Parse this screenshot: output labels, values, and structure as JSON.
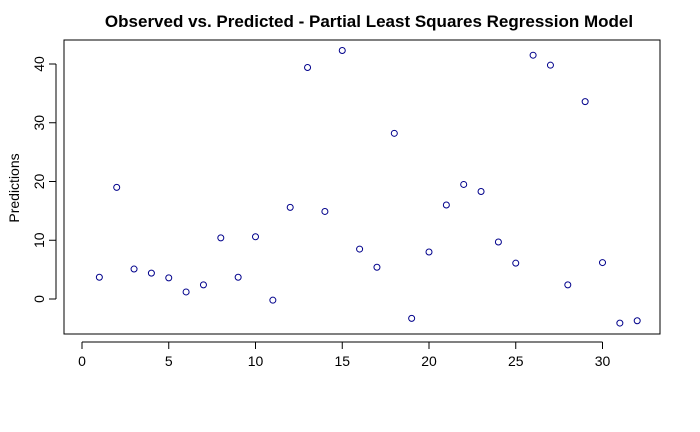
{
  "chart_data": {
    "type": "scatter",
    "title": "Observed vs. Predicted - Partial Least Squares Regression Model",
    "xlabel": "",
    "ylabel": "Predictions",
    "xlim": [
      0,
      33
    ],
    "ylim": [
      -6,
      45
    ],
    "xticks": [
      0,
      5,
      10,
      15,
      20,
      25,
      30
    ],
    "yticks": [
      0,
      10,
      20,
      30,
      40
    ],
    "grid": false,
    "marker": "open-circle",
    "point_color": "#00008b",
    "x": [
      1,
      2,
      3,
      4,
      5,
      6,
      7,
      8,
      9,
      10,
      11,
      12,
      13,
      14,
      15,
      16,
      17,
      18,
      19,
      20,
      21,
      22,
      23,
      24,
      25,
      26,
      27,
      28,
      29,
      30,
      31,
      32
    ],
    "y": [
      3.7,
      19.0,
      5.1,
      4.4,
      3.6,
      1.2,
      2.4,
      10.4,
      3.7,
      10.6,
      -0.2,
      15.6,
      39.4,
      14.9,
      42.3,
      8.5,
      5.4,
      28.2,
      -3.3,
      8.0,
      16.0,
      19.5,
      18.3,
      9.7,
      6.1,
      41.5,
      39.8,
      2.4,
      33.6,
      6.2,
      -4.1,
      -3.7
    ]
  }
}
